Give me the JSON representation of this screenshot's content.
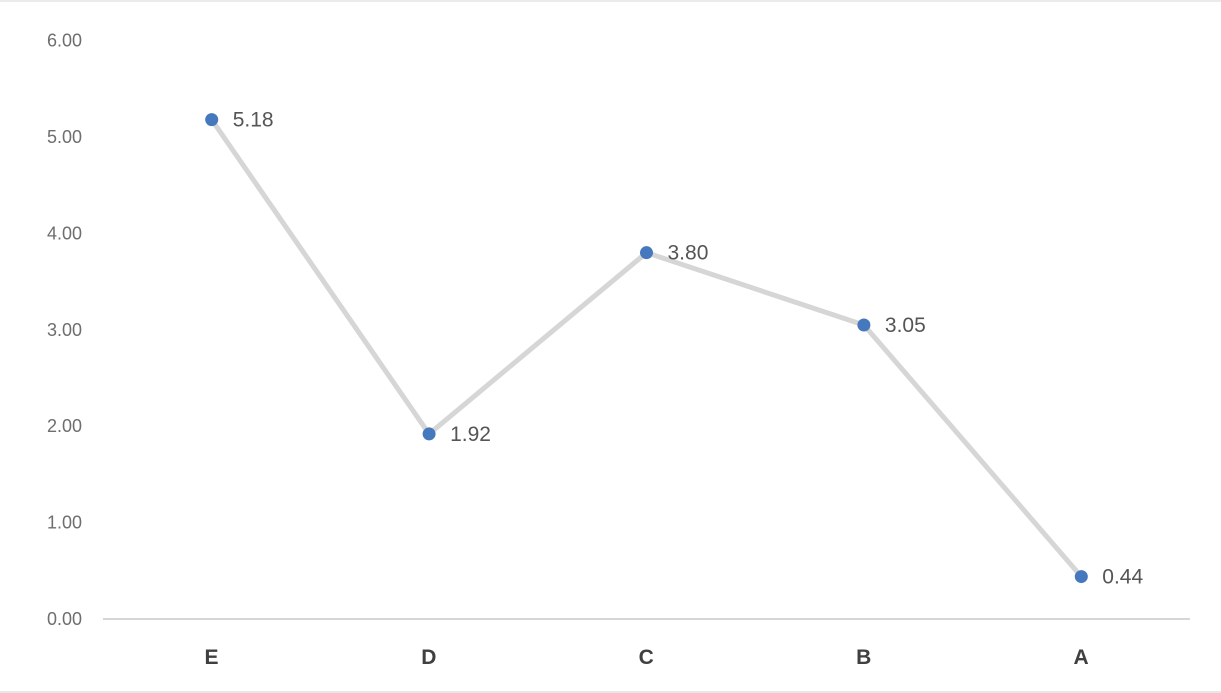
{
  "chart_data": {
    "type": "line",
    "title": "",
    "xlabel": "",
    "ylabel": "",
    "categories": [
      "E",
      "D",
      "C",
      "B",
      "A"
    ],
    "series": [
      {
        "name": "values",
        "values": [
          5.18,
          1.92,
          3.8,
          3.05,
          0.44
        ]
      }
    ],
    "data_labels": [
      "5.18",
      "1.92",
      "3.80",
      "3.05",
      "0.44"
    ],
    "ylim": [
      0,
      6
    ],
    "ytick_step": 1,
    "ytick_labels": [
      "0.00",
      "1.00",
      "2.00",
      "3.00",
      "4.00",
      "5.00",
      "6.00"
    ],
    "grid": false,
    "legend": "none",
    "marker_shape": "circle",
    "colors": {
      "marker": "#4678bd",
      "line": "#d6d6d6",
      "axis_line": "#c9c9c9",
      "tick_text": "#6e6e6e",
      "category_text": "#404040",
      "label_text": "#555555",
      "background": "#ffffff",
      "frame_edge": "#ebebeb"
    }
  }
}
